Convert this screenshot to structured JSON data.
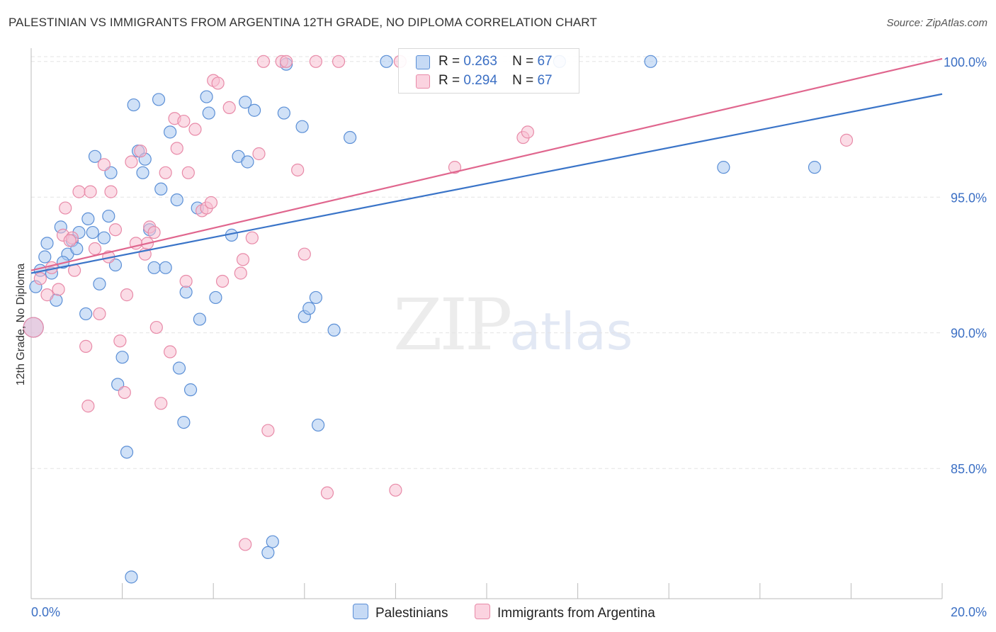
{
  "title": "PALESTINIAN VS IMMIGRANTS FROM ARGENTINA 12TH GRADE, NO DIPLOMA CORRELATION CHART",
  "source": "Source: ZipAtlas.com",
  "watermark": {
    "zip": "ZIP",
    "atlas": "atlas"
  },
  "legend": {
    "row1": {
      "r_label": "R =",
      "r_value": "0.263",
      "n_label": "N =",
      "n_value": "67"
    },
    "row2": {
      "r_label": "R =",
      "r_value": "0.294",
      "n_label": "N =",
      "n_value": "67"
    }
  },
  "colors": {
    "blue_fill": "#aac8f0",
    "blue_stroke": "#5b8fd6",
    "blue_line": "#3a74c8",
    "pink_fill": "#f8c0d2",
    "pink_stroke": "#e88aa8",
    "pink_line": "#e0668e",
    "grid": "#e3e3e3",
    "tick_label": "#3b6fc4"
  },
  "chart_data": {
    "type": "scatter",
    "title": "PALESTINIAN VS IMMIGRANTS FROM ARGENTINA 12TH GRADE, NO DIPLOMA CORRELATION CHART",
    "xlabel": "",
    "ylabel": "12th Grade, No Diploma",
    "xlim": [
      0,
      20
    ],
    "ylim": [
      80.2,
      100.7
    ],
    "x_tick_labels": [
      "0.0%",
      "20.0%"
    ],
    "y_ticks": [
      85,
      90,
      95,
      100
    ],
    "y_tick_labels": [
      "85.0%",
      "90.0%",
      "95.0%",
      "100.0%"
    ],
    "series": [
      {
        "name": "Palestinians",
        "trend": {
          "x": [
            0,
            20
          ],
          "y": [
            92.2,
            98.8
          ]
        },
        "points": [
          [
            0.05,
            90.2
          ],
          [
            0.1,
            91.7
          ],
          [
            0.2,
            92.3
          ],
          [
            0.3,
            92.8
          ],
          [
            0.35,
            93.3
          ],
          [
            0.45,
            92.2
          ],
          [
            0.55,
            91.2
          ],
          [
            0.65,
            93.9
          ],
          [
            0.8,
            92.9
          ],
          [
            0.9,
            93.4
          ],
          [
            1.0,
            93.1
          ],
          [
            1.05,
            93.7
          ],
          [
            1.2,
            90.7
          ],
          [
            1.25,
            94.2
          ],
          [
            1.35,
            93.7
          ],
          [
            1.4,
            96.5
          ],
          [
            1.5,
            91.8
          ],
          [
            1.6,
            93.5
          ],
          [
            1.7,
            94.3
          ],
          [
            1.75,
            95.9
          ],
          [
            1.85,
            92.5
          ],
          [
            1.9,
            88.1
          ],
          [
            2.0,
            89.1
          ],
          [
            2.1,
            85.6
          ],
          [
            2.2,
            81.0
          ],
          [
            2.25,
            98.4
          ],
          [
            2.35,
            96.7
          ],
          [
            2.45,
            95.9
          ],
          [
            2.5,
            96.4
          ],
          [
            2.6,
            93.8
          ],
          [
            2.7,
            92.4
          ],
          [
            2.8,
            98.6
          ],
          [
            2.85,
            95.3
          ],
          [
            2.95,
            92.4
          ],
          [
            3.05,
            97.4
          ],
          [
            3.2,
            94.9
          ],
          [
            3.25,
            88.7
          ],
          [
            3.35,
            86.7
          ],
          [
            3.4,
            91.5
          ],
          [
            3.5,
            87.9
          ],
          [
            3.65,
            94.6
          ],
          [
            3.7,
            90.5
          ],
          [
            3.85,
            98.7
          ],
          [
            3.9,
            98.1
          ],
          [
            4.05,
            91.3
          ],
          [
            4.4,
            93.6
          ],
          [
            4.55,
            96.5
          ],
          [
            4.7,
            98.5
          ],
          [
            4.75,
            96.3
          ],
          [
            4.9,
            98.2
          ],
          [
            5.2,
            81.9
          ],
          [
            5.3,
            82.3
          ],
          [
            5.55,
            98.1
          ],
          [
            5.6,
            99.9
          ],
          [
            5.95,
            97.6
          ],
          [
            6.0,
            90.6
          ],
          [
            6.1,
            90.9
          ],
          [
            6.25,
            91.3
          ],
          [
            6.3,
            86.6
          ],
          [
            6.65,
            90.1
          ],
          [
            7.0,
            97.2
          ],
          [
            7.8,
            100.0
          ],
          [
            11.6,
            100.0
          ],
          [
            13.6,
            100.0
          ],
          [
            15.2,
            96.1
          ],
          [
            17.2,
            96.1
          ],
          [
            0.7,
            92.6
          ]
        ]
      },
      {
        "name": "Immigrants from Argentina",
        "trend": {
          "x": [
            0,
            20
          ],
          "y": [
            92.3,
            100.1
          ]
        },
        "points": [
          [
            0.05,
            90.2
          ],
          [
            0.2,
            92.0
          ],
          [
            0.35,
            91.4
          ],
          [
            0.45,
            92.4
          ],
          [
            0.6,
            91.6
          ],
          [
            0.7,
            93.6
          ],
          [
            0.75,
            94.6
          ],
          [
            0.9,
            93.5
          ],
          [
            0.95,
            92.3
          ],
          [
            1.05,
            95.2
          ],
          [
            1.2,
            89.5
          ],
          [
            1.3,
            95.2
          ],
          [
            1.4,
            93.1
          ],
          [
            1.5,
            90.7
          ],
          [
            1.6,
            96.2
          ],
          [
            1.7,
            92.8
          ],
          [
            1.75,
            95.2
          ],
          [
            1.85,
            93.8
          ],
          [
            1.95,
            89.7
          ],
          [
            2.05,
            87.8
          ],
          [
            2.1,
            91.4
          ],
          [
            2.2,
            96.3
          ],
          [
            2.4,
            96.7
          ],
          [
            2.5,
            92.9
          ],
          [
            2.55,
            93.3
          ],
          [
            2.6,
            93.9
          ],
          [
            2.7,
            93.7
          ],
          [
            2.75,
            90.2
          ],
          [
            2.85,
            87.4
          ],
          [
            2.95,
            95.9
          ],
          [
            3.05,
            89.3
          ],
          [
            3.15,
            97.9
          ],
          [
            3.2,
            96.8
          ],
          [
            3.35,
            97.8
          ],
          [
            3.4,
            91.9
          ],
          [
            3.45,
            95.9
          ],
          [
            3.6,
            97.5
          ],
          [
            3.75,
            94.5
          ],
          [
            3.85,
            94.6
          ],
          [
            3.95,
            94.8
          ],
          [
            4.0,
            99.3
          ],
          [
            4.1,
            99.2
          ],
          [
            4.2,
            91.9
          ],
          [
            4.35,
            98.3
          ],
          [
            4.6,
            92.2
          ],
          [
            4.65,
            92.7
          ],
          [
            4.7,
            82.2
          ],
          [
            4.85,
            93.5
          ],
          [
            5.0,
            96.6
          ],
          [
            5.1,
            100.0
          ],
          [
            5.2,
            86.4
          ],
          [
            5.5,
            100.0
          ],
          [
            5.6,
            100.0
          ],
          [
            5.85,
            96.0
          ],
          [
            6.0,
            92.9
          ],
          [
            6.25,
            100.0
          ],
          [
            6.5,
            84.1
          ],
          [
            6.75,
            100.0
          ],
          [
            8.0,
            84.2
          ],
          [
            8.1,
            100.0
          ],
          [
            9.3,
            96.1
          ],
          [
            10.8,
            97.2
          ],
          [
            10.9,
            97.4
          ],
          [
            17.9,
            97.1
          ],
          [
            1.25,
            87.3
          ],
          [
            0.85,
            93.4
          ],
          [
            2.3,
            93.3
          ]
        ]
      }
    ]
  },
  "bottom_legend": {
    "series1": "Palestinians",
    "series2": "Immigrants from Argentina"
  }
}
